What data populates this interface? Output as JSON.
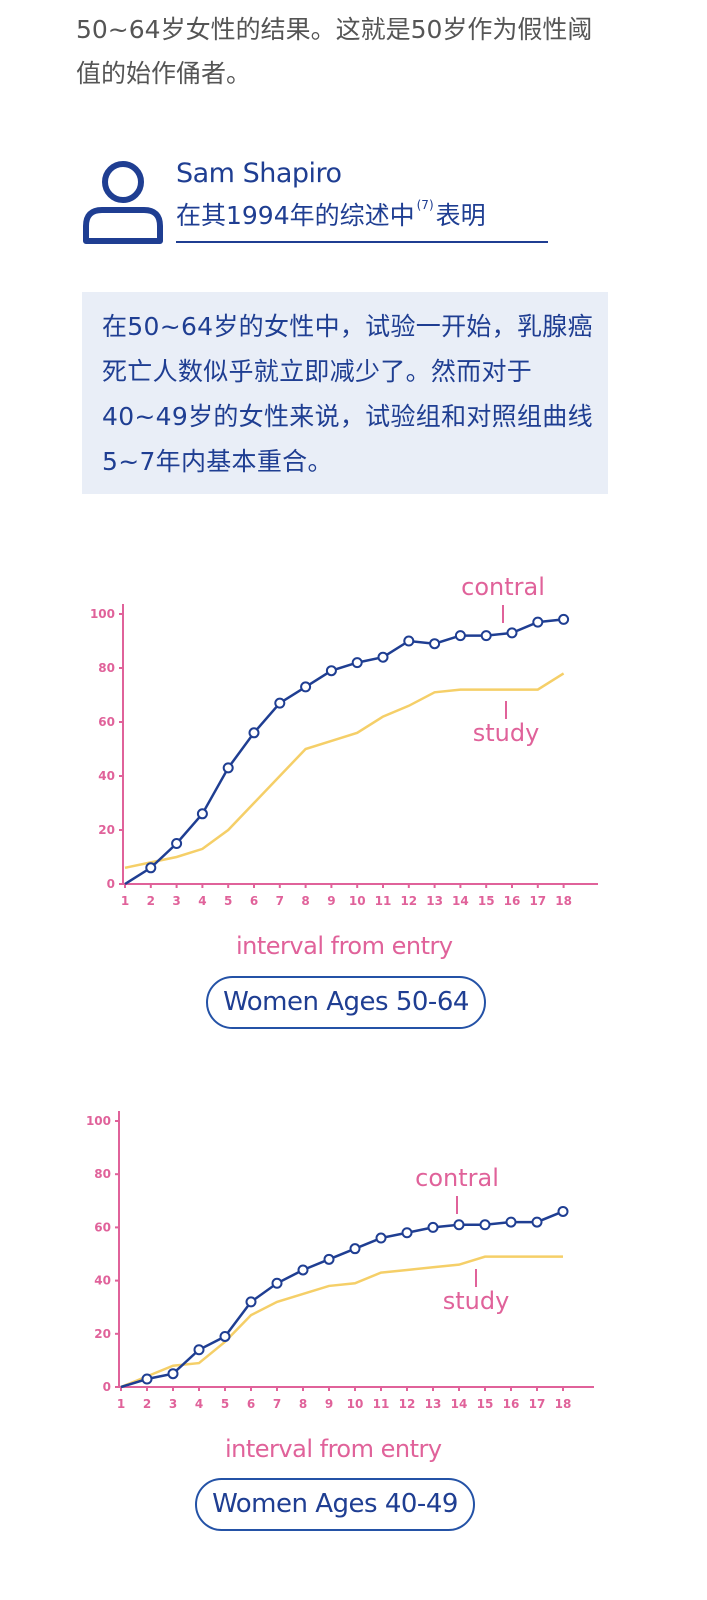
{
  "intro": {
    "line1": "50~64岁女性的结果。这就是50岁作为假性阈",
    "line2": "值的始作俑者。"
  },
  "author": {
    "name": "Sam Shapiro",
    "subtitle_before": "在其1994年的综述中",
    "citation": "(7)",
    "subtitle_after": "表明",
    "icon": "person-icon"
  },
  "quote": {
    "text": "在50~64岁的女性中，试验一开始，乳腺癌死亡人数似乎就立即减少了。然而对于40~49岁的女性来说，试验组和对照组曲线5~7年内基本重合。"
  },
  "colors": {
    "navy": "#1f3e92",
    "pink": "#e0629a",
    "yellow": "#f5cf68",
    "quote_bg": "#e9eef7"
  },
  "chart_data": [
    {
      "type": "line",
      "title": "Women Ages 50-64",
      "xlabel": "interval from entry",
      "ylabel": "",
      "x": [
        1,
        2,
        3,
        4,
        5,
        6,
        7,
        8,
        9,
        10,
        11,
        12,
        13,
        14,
        15,
        16,
        17,
        18
      ],
      "y_ticks": [
        0,
        20,
        40,
        60,
        80,
        100
      ],
      "ylim": [
        0,
        100
      ],
      "series": [
        {
          "name": "contral",
          "markers": true,
          "values": [
            0,
            6,
            15,
            26,
            43,
            56,
            67,
            73,
            79,
            82,
            84,
            90,
            89,
            92,
            92,
            93,
            97,
            98
          ]
        },
        {
          "name": "study",
          "markers": false,
          "values": [
            6,
            8,
            10,
            13,
            20,
            30,
            40,
            50,
            53,
            56,
            62,
            66,
            71,
            72,
            72,
            72,
            72,
            78
          ]
        }
      ]
    },
    {
      "type": "line",
      "title": "Women Ages 40-49",
      "xlabel": "interval from entry",
      "ylabel": "",
      "x": [
        1,
        2,
        3,
        4,
        5,
        6,
        7,
        8,
        9,
        10,
        11,
        12,
        13,
        14,
        15,
        16,
        17,
        18
      ],
      "y_ticks": [
        0,
        20,
        40,
        60,
        80,
        100
      ],
      "ylim": [
        0,
        100
      ],
      "series": [
        {
          "name": "contral",
          "markers": true,
          "values": [
            0,
            3,
            5,
            14,
            19,
            32,
            39,
            44,
            48,
            52,
            56,
            58,
            60,
            61,
            61,
            62,
            62,
            66
          ]
        },
        {
          "name": "study",
          "markers": false,
          "values": [
            0,
            4,
            8,
            9,
            17,
            27,
            32,
            35,
            38,
            39,
            43,
            44,
            45,
            46,
            49,
            49,
            49,
            49
          ]
        }
      ]
    }
  ]
}
